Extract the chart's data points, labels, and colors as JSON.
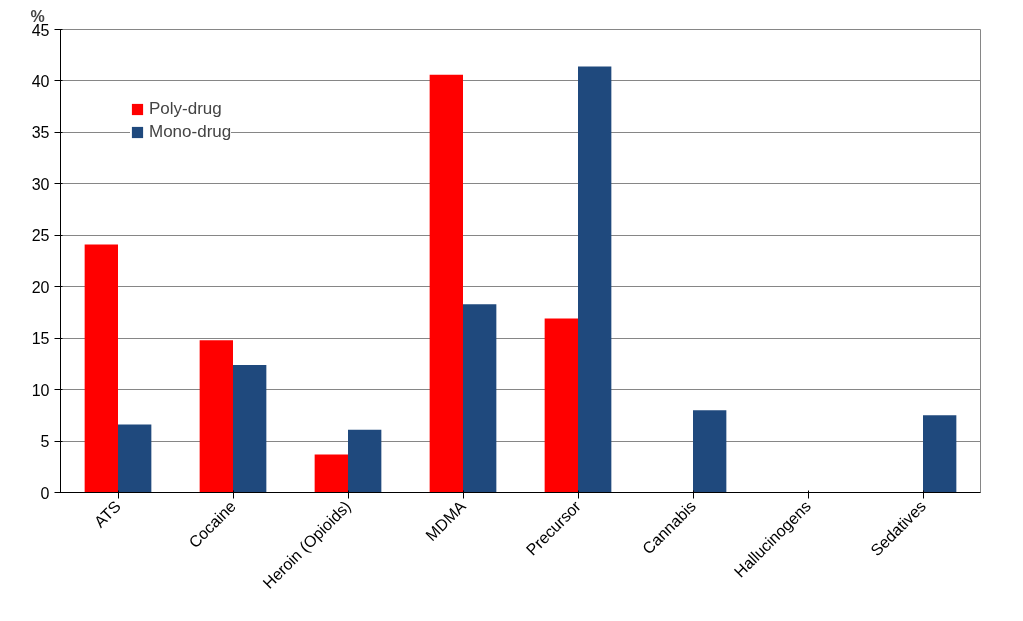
{
  "chart_data": {
    "type": "bar",
    "ylabel": "%",
    "categories": [
      "ATS",
      "Cocaine",
      "Heroin (Opioids)",
      "MDMA",
      "Precursor",
      "Cannabis",
      "Hallucinogens",
      "Sedatives"
    ],
    "series": [
      {
        "name": "Poly-drug",
        "color": "#ff0000",
        "values": [
          24.1,
          14.8,
          3.7,
          40.6,
          16.9,
          null,
          null,
          null
        ]
      },
      {
        "name": "Mono-drug",
        "color": "#1f497d",
        "values": [
          6.6,
          12.4,
          6.1,
          18.3,
          41.4,
          8.0,
          null,
          7.5
        ]
      }
    ],
    "ylim": [
      0,
      45
    ],
    "yticks": [
      0,
      5,
      10,
      15,
      20,
      25,
      30,
      35,
      40,
      45
    ],
    "grid": "y",
    "legend": "top left"
  }
}
